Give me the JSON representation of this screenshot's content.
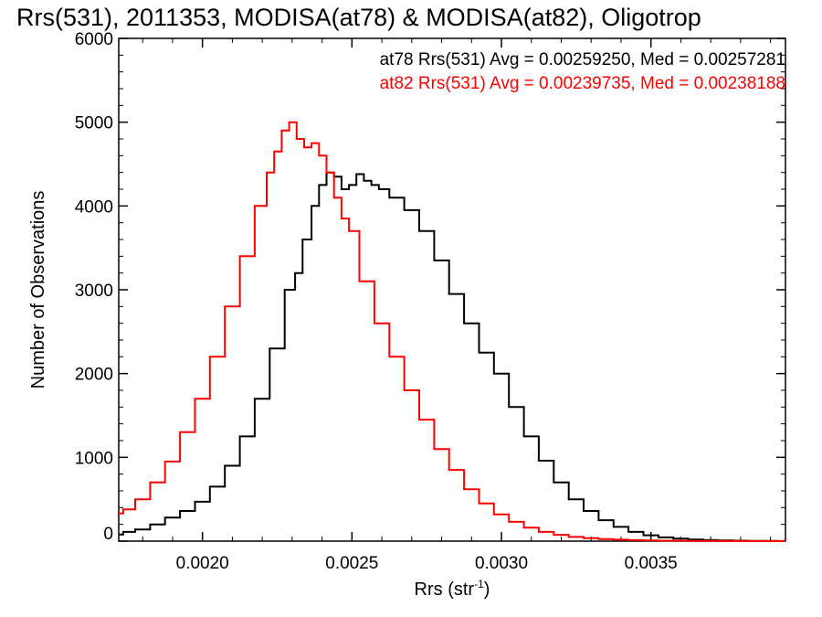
{
  "chart_data": {
    "type": "line",
    "title": "Rrs(531), 2011353, MODISA(at78) & MODISA(at82), Oligotrop",
    "xlabel": "Rrs (str",
    "xlabel_sup": "-1",
    "xlabel_end": ")",
    "ylabel": "Number of Observations",
    "xlim": [
      0.00172,
      0.00395
    ],
    "ylim": [
      0,
      6000
    ],
    "xticks": [
      0.002,
      0.0025,
      0.003,
      0.0035
    ],
    "xtick_labels": [
      "0.0020",
      "0.0025",
      "0.0030",
      "0.0035"
    ],
    "yticks": [
      0,
      1000,
      2000,
      3000,
      4000,
      5000,
      6000
    ],
    "ytick_labels": [
      "0",
      "1000",
      "2000",
      "3000",
      "4000",
      "5000",
      "6000"
    ],
    "grid": false,
    "legend_position": "top-right",
    "series": [
      {
        "name": "at78",
        "legend": "at78 Rrs(531) Avg = 0.00259250, Med = 0.00257281",
        "color": "#000000",
        "x": [
          0.00172,
          0.00175,
          0.0018,
          0.00185,
          0.0019,
          0.00195,
          0.002,
          0.00205,
          0.0021,
          0.00215,
          0.0022,
          0.00225,
          0.0023,
          0.00232,
          0.00235,
          0.00238,
          0.0024,
          0.00243,
          0.00245,
          0.00248,
          0.0025,
          0.00253,
          0.00255,
          0.00258,
          0.0026,
          0.00265,
          0.0027,
          0.00275,
          0.0028,
          0.00285,
          0.0029,
          0.00295,
          0.003,
          0.00305,
          0.0031,
          0.00315,
          0.0032,
          0.00325,
          0.0033,
          0.00335,
          0.0034,
          0.00345,
          0.0035,
          0.00355,
          0.0036,
          0.00365,
          0.0037,
          0.00375,
          0.0038,
          0.00385,
          0.0039,
          0.00395
        ],
        "y": [
          80,
          110,
          140,
          200,
          280,
          360,
          470,
          650,
          900,
          1250,
          1700,
          2300,
          3000,
          3200,
          3600,
          4000,
          4250,
          4400,
          4350,
          4200,
          4250,
          4380,
          4300,
          4250,
          4200,
          4100,
          3950,
          3700,
          3350,
          2950,
          2600,
          2250,
          2000,
          1600,
          1250,
          960,
          700,
          500,
          360,
          250,
          170,
          110,
          70,
          45,
          30,
          20,
          12,
          8,
          5,
          3,
          2,
          1
        ]
      },
      {
        "name": "at82",
        "legend": "at82 Rrs(531) Avg = 0.00239735, Med = 0.00238188",
        "color": "#ff0000",
        "x": [
          0.00172,
          0.00175,
          0.0018,
          0.00185,
          0.0019,
          0.00195,
          0.002,
          0.00205,
          0.0021,
          0.00215,
          0.0022,
          0.00223,
          0.00225,
          0.00228,
          0.0023,
          0.00233,
          0.00235,
          0.00238,
          0.0024,
          0.00243,
          0.00245,
          0.00248,
          0.0025,
          0.00255,
          0.0026,
          0.00265,
          0.0027,
          0.00275,
          0.0028,
          0.00285,
          0.0029,
          0.00295,
          0.003,
          0.00305,
          0.0031,
          0.00315,
          0.0032,
          0.00325,
          0.0033,
          0.00335,
          0.0034,
          0.00345,
          0.0035,
          0.00355,
          0.0036,
          0.00365,
          0.0037,
          0.00375,
          0.0038,
          0.0039,
          0.00395
        ],
        "y": [
          330,
          380,
          500,
          700,
          950,
          1300,
          1700,
          2200,
          2800,
          3400,
          4000,
          4400,
          4650,
          4900,
          5000,
          4800,
          4700,
          4750,
          4600,
          4400,
          4100,
          3850,
          3700,
          3100,
          2600,
          2200,
          1800,
          1450,
          1100,
          850,
          620,
          450,
          320,
          230,
          160,
          110,
          75,
          50,
          35,
          25,
          17,
          12,
          8,
          5,
          4,
          3,
          2,
          1,
          1,
          0,
          0
        ]
      }
    ]
  }
}
